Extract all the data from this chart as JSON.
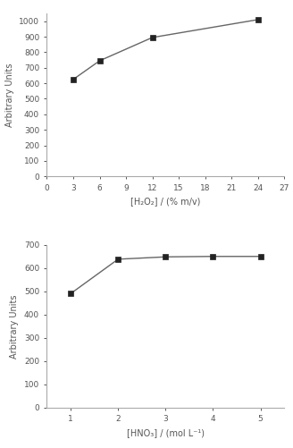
{
  "top": {
    "x": [
      3,
      6,
      12,
      24
    ],
    "y": [
      625,
      745,
      895,
      1010
    ],
    "xlabel": "[H₂O₂] / (% m/v)",
    "ylabel": "Arbitrary Units",
    "xlim": [
      0,
      27
    ],
    "ylim": [
      0,
      1050
    ],
    "xticks": [
      0,
      3,
      6,
      9,
      12,
      15,
      18,
      21,
      24,
      27
    ],
    "yticks": [
      0,
      100,
      200,
      300,
      400,
      500,
      600,
      700,
      800,
      900,
      1000
    ]
  },
  "bottom": {
    "x": [
      1,
      2,
      3,
      4,
      5
    ],
    "y": [
      490,
      638,
      648,
      650,
      650
    ],
    "xlabel": "[HNO₃] / (mol L⁻¹)",
    "ylabel": "Arbitrary Units",
    "xlim": [
      0.5,
      5.5
    ],
    "ylim": [
      0,
      700
    ],
    "xticks": [
      1,
      2,
      3,
      4,
      5
    ],
    "yticks": [
      0,
      100,
      200,
      300,
      400,
      500,
      600,
      700
    ]
  },
  "line_color": "#666666",
  "marker": "s",
  "marker_color": "#222222",
  "marker_size": 4,
  "linewidth": 1.0,
  "bg_color": "#ffffff",
  "spine_color": "#aaaaaa",
  "ylabel_fontsize": 7,
  "xlabel_fontsize": 7,
  "tick_fontsize": 6.5,
  "tick_color": "#555555"
}
